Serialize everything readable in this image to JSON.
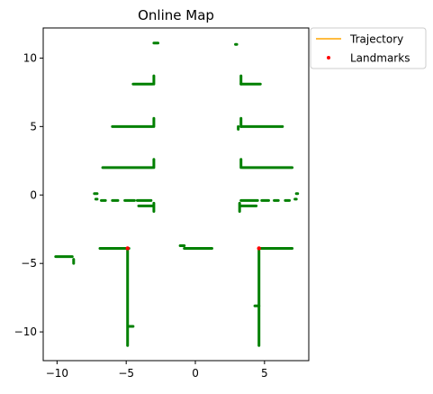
{
  "chart_data": {
    "type": "scatter",
    "title": "Online Map",
    "xlabel": "",
    "ylabel": "",
    "xlim": [
      -11.0,
      8.2
    ],
    "ylim": [
      -12.1,
      12.2
    ],
    "xticks": [
      -10,
      -5,
      0,
      5
    ],
    "yticks": [
      10,
      5,
      0,
      -5,
      -10
    ],
    "xtick_labels": [
      "−10",
      "−5",
      "0",
      "5"
    ],
    "ytick_labels": [
      "10",
      "5",
      "0",
      "−5",
      "−10"
    ],
    "grid": false,
    "legend": {
      "placement": "outside-top-right",
      "entries": [
        {
          "label": "Trajectory",
          "kind": "line",
          "color": "#ffa500"
        },
        {
          "label": "Landmarks",
          "kind": "marker",
          "color": "#ff0000"
        }
      ]
    },
    "map_color": "#008000",
    "map_segments": [
      {
        "from": [
          -3.0,
          11.1
        ],
        "to": [
          -2.7,
          11.1
        ]
      },
      {
        "from": [
          -4.5,
          8.1
        ],
        "to": [
          -3.1,
          8.1
        ]
      },
      {
        "from": [
          -3.0,
          8.1
        ],
        "to": [
          -3.0,
          8.7
        ]
      },
      {
        "from": [
          -6.0,
          5.0
        ],
        "to": [
          -3.1,
          5.0
        ]
      },
      {
        "from": [
          -3.0,
          5.0
        ],
        "to": [
          -3.0,
          5.6
        ]
      },
      {
        "from": [
          -6.7,
          2.0
        ],
        "to": [
          -3.1,
          2.0
        ]
      },
      {
        "from": [
          -3.0,
          2.0
        ],
        "to": [
          -3.0,
          2.6
        ]
      },
      {
        "from": [
          -7.3,
          0.1
        ],
        "to": [
          -7.1,
          0.1
        ]
      },
      {
        "from": [
          -7.2,
          -0.3
        ],
        "to": [
          -7.1,
          -0.3
        ]
      },
      {
        "from": [
          -6.8,
          -0.4
        ],
        "to": [
          -6.5,
          -0.4
        ]
      },
      {
        "from": [
          -6.0,
          -0.4
        ],
        "to": [
          -5.6,
          -0.4
        ]
      },
      {
        "from": [
          -5.1,
          -0.4
        ],
        "to": [
          -4.4,
          -0.4
        ]
      },
      {
        "from": [
          -4.2,
          -0.4
        ],
        "to": [
          -3.2,
          -0.4
        ]
      },
      {
        "from": [
          -4.1,
          -0.8
        ],
        "to": [
          -3.1,
          -0.8
        ]
      },
      {
        "from": [
          -3.0,
          -0.6
        ],
        "to": [
          -3.0,
          -1.2
        ]
      },
      {
        "from": [
          -10.1,
          -4.5
        ],
        "to": [
          -8.9,
          -4.5
        ]
      },
      {
        "from": [
          -8.8,
          -4.7
        ],
        "to": [
          -8.8,
          -5.0
        ]
      },
      {
        "from": [
          -6.9,
          -3.9
        ],
        "to": [
          -4.8,
          -3.9
        ]
      },
      {
        "from": [
          -4.9,
          -3.9
        ],
        "to": [
          -4.9,
          -11.0
        ]
      },
      {
        "from": [
          -4.8,
          -9.6
        ],
        "to": [
          -4.5,
          -9.6
        ]
      },
      {
        "from": [
          -1.1,
          -3.7
        ],
        "to": [
          -0.8,
          -3.7
        ]
      },
      {
        "from": [
          -0.8,
          -3.9
        ],
        "to": [
          1.2,
          -3.9
        ]
      },
      {
        "from": [
          2.9,
          11.0
        ],
        "to": [
          2.9,
          11.0
        ]
      },
      {
        "from": [
          3.3,
          8.1
        ],
        "to": [
          4.7,
          8.1
        ]
      },
      {
        "from": [
          3.3,
          8.1
        ],
        "to": [
          3.3,
          8.7
        ]
      },
      {
        "from": [
          3.3,
          5.0
        ],
        "to": [
          6.3,
          5.0
        ]
      },
      {
        "from": [
          3.3,
          5.0
        ],
        "to": [
          3.3,
          5.6
        ]
      },
      {
        "from": [
          3.1,
          4.8
        ],
        "to": [
          3.1,
          5.0
        ]
      },
      {
        "from": [
          3.4,
          2.0
        ],
        "to": [
          7.0,
          2.0
        ]
      },
      {
        "from": [
          3.3,
          2.0
        ],
        "to": [
          3.3,
          2.6
        ]
      },
      {
        "from": [
          3.3,
          -0.4
        ],
        "to": [
          4.5,
          -0.4
        ]
      },
      {
        "from": [
          4.8,
          -0.4
        ],
        "to": [
          5.3,
          -0.4
        ]
      },
      {
        "from": [
          5.7,
          -0.4
        ],
        "to": [
          6.0,
          -0.4
        ]
      },
      {
        "from": [
          6.5,
          -0.4
        ],
        "to": [
          6.8,
          -0.4
        ]
      },
      {
        "from": [
          7.3,
          0.1
        ],
        "to": [
          7.4,
          0.1
        ]
      },
      {
        "from": [
          7.2,
          -0.3
        ],
        "to": [
          7.3,
          -0.3
        ]
      },
      {
        "from": [
          3.3,
          -0.8
        ],
        "to": [
          4.4,
          -0.8
        ]
      },
      {
        "from": [
          3.2,
          -0.6
        ],
        "to": [
          3.2,
          -1.2
        ]
      },
      {
        "from": [
          4.6,
          -3.9
        ],
        "to": [
          7.0,
          -3.9
        ]
      },
      {
        "from": [
          4.6,
          -3.9
        ],
        "to": [
          4.6,
          -11.0
        ]
      },
      {
        "from": [
          4.3,
          -8.1
        ],
        "to": [
          4.6,
          -8.1
        ]
      }
    ],
    "series": [
      {
        "name": "Landmarks",
        "type": "scatter",
        "color": "#ff0000",
        "x": [
          -4.9,
          4.6
        ],
        "y": [
          -3.9,
          -3.9
        ]
      }
    ]
  }
}
